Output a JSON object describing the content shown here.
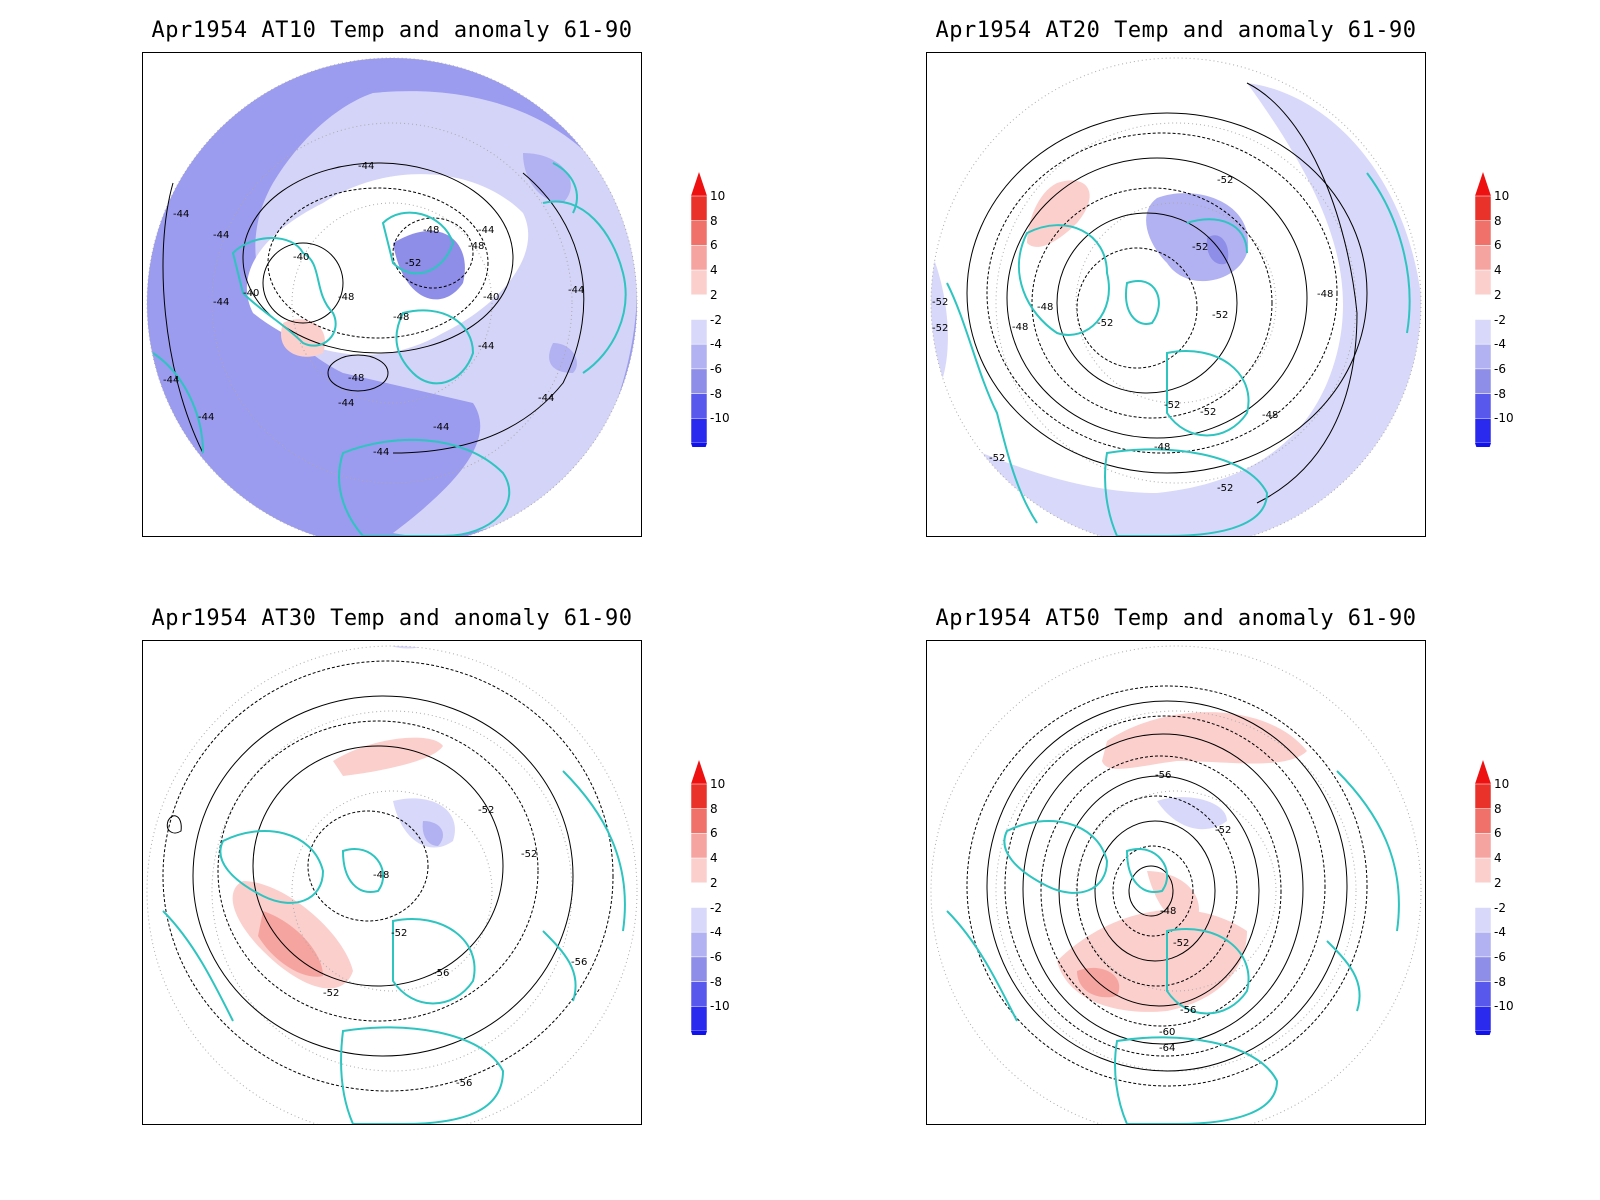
{
  "panels": [
    {
      "title": "Apr1954 AT10 Temp and anomaly 61-90",
      "contour_labels": [
        "-44",
        "-44",
        "-44",
        "-44",
        "-44",
        "-44",
        "-40",
        "-40",
        "-40",
        "-48",
        "-48",
        "-48",
        "-48",
        "-52",
        "-48",
        "-44",
        "-44",
        "-44",
        "-44",
        "-44",
        "-44",
        "-44"
      ]
    },
    {
      "title": "Apr1954 AT20 Temp and anomaly 61-90",
      "contour_labels": [
        "-52",
        "-52",
        "-52",
        "-48",
        "-48",
        "-52",
        "-52",
        "-52",
        "-52",
        "-52",
        "-48",
        "-48",
        "-48",
        "-52",
        "-52"
      ]
    },
    {
      "title": "Apr1954 AT30 Temp and anomaly 61-90",
      "contour_labels": [
        "-52",
        "-52",
        "-48",
        "-52",
        "-56",
        "-56",
        "-52",
        "-56"
      ]
    },
    {
      "title": "Apr1954 AT50 Temp and anomaly 61-90",
      "contour_labels": [
        "-56",
        "-52",
        "-48",
        "-52",
        "-56",
        "-60",
        "-64"
      ]
    }
  ],
  "colorbar": {
    "labels": [
      "10",
      "8",
      "6",
      "4",
      "2",
      "-2",
      "-4",
      "-6",
      "-8",
      "-10"
    ],
    "colors": [
      "#e8322a",
      "#f0706a",
      "#f6a4a0",
      "#fbcfcc",
      "#ffffff",
      "#d8d8fa",
      "#b2b2f2",
      "#8e8ee8",
      "#5858ec",
      "#2a2aee"
    ],
    "top_arrow_color": "#ee1111",
    "bottom_arrow_color": "#1111ee"
  },
  "coastline_color": "#2ec4c0"
}
